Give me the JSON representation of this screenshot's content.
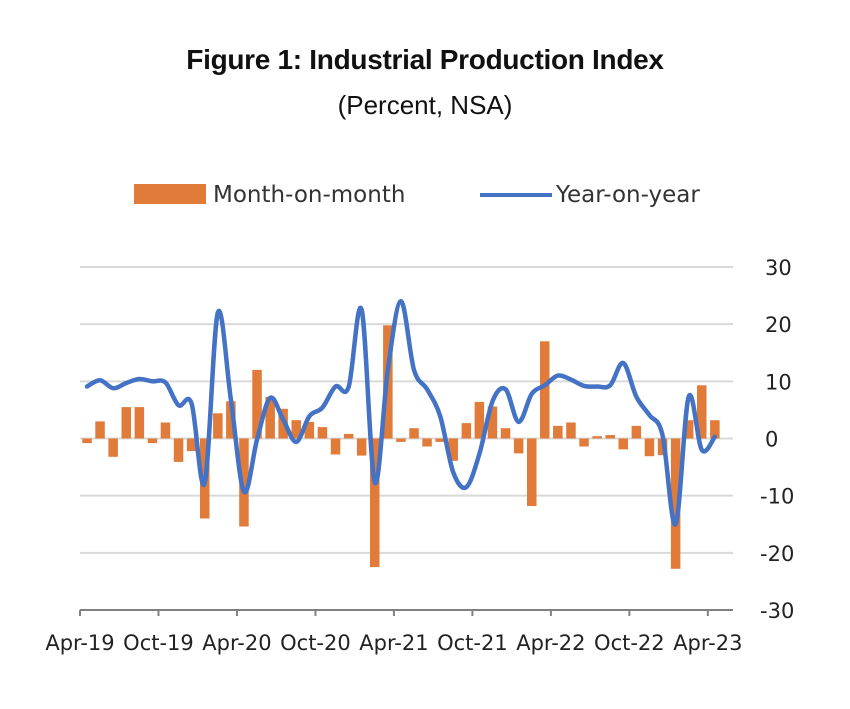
{
  "title": "Figure 1: Industrial Production Index",
  "subtitle": "(Percent, NSA)",
  "colors": {
    "bar": "#E07B39",
    "line": "#4472C4",
    "grid": "#d9d9d9",
    "axis": "#808080"
  },
  "chart_data": {
    "type": "bar+line",
    "title": "Figure 1: Industrial Production Index",
    "subtitle": "(Percent, NSA)",
    "xlabel": "",
    "ylabel": "",
    "ylim": [
      -30,
      30
    ],
    "yticks": [
      30,
      20,
      10,
      0,
      -10,
      -20,
      -30
    ],
    "y_axis_side": "right",
    "grid": true,
    "legend": {
      "placement": "top",
      "entries": [
        "Month-on-month",
        "Year-on-year"
      ]
    },
    "x_tick_labels": [
      "Apr-19",
      "Oct-19",
      "Apr-20",
      "Oct-20",
      "Apr-21",
      "Oct-21",
      "Apr-22",
      "Oct-22",
      "Apr-23"
    ],
    "x_tick_every": 6,
    "x_start": "Apr-19",
    "x_end": "Apr-23",
    "series": [
      {
        "name": "Month-on-month",
        "type": "bar",
        "values": [
          -0.8,
          3.0,
          -3.2,
          5.5,
          5.5,
          -0.8,
          2.8,
          -4.1,
          -2.2,
          -14.0,
          4.4,
          6.5,
          -15.4,
          12.0,
          7.3,
          5.2,
          3.2,
          2.9,
          2.0,
          -2.8,
          0.8,
          -3.0,
          -22.5,
          19.8,
          -0.6,
          1.8,
          -1.4,
          -0.6,
          -3.9,
          2.7,
          6.4,
          5.6,
          1.8,
          -2.6,
          -11.8,
          17.0,
          2.2,
          2.8,
          -1.4,
          0.4,
          0.6,
          -1.9,
          2.2,
          -3.1,
          -2.9,
          -22.8,
          3.2,
          9.3,
          3.2
        ]
      },
      {
        "name": "Year-on-year",
        "type": "line",
        "values": [
          9.1,
          10.2,
          8.8,
          9.7,
          10.4,
          10.0,
          9.8,
          5.8,
          6.1,
          -7.8,
          22.0,
          6.8,
          -9.3,
          -0.2,
          7.1,
          3.3,
          -0.6,
          3.9,
          5.4,
          9.1,
          9.0,
          22.5,
          -7.7,
          12.0,
          24.0,
          12.0,
          8.6,
          3.9,
          -5.9,
          -8.5,
          -2.7,
          6.5,
          8.6,
          2.9,
          7.8,
          9.3,
          11.0,
          10.3,
          9.2,
          9.1,
          9.3,
          13.2,
          7.3,
          4.1,
          0.6,
          -15.0,
          7.3,
          -2.0,
          0.3
        ]
      }
    ]
  }
}
